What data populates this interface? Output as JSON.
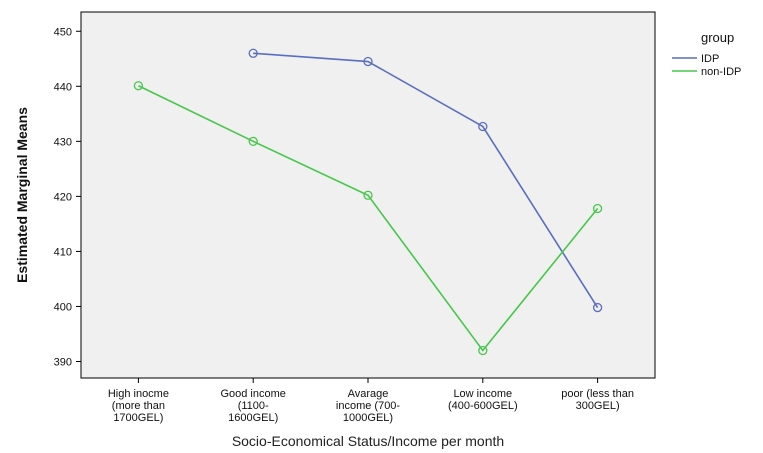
{
  "chart_data": {
    "type": "line",
    "categories": [
      [
        "High inocme",
        "(more than",
        "1700GEL)"
      ],
      [
        "Good income",
        "(1100-",
        "1600GEL)"
      ],
      [
        "Avarage",
        "income (700-",
        "1000GEL)"
      ],
      [
        "Low income",
        "(400-600GEL)"
      ],
      [
        "poor (less than",
        "300GEL)"
      ]
    ],
    "series": [
      {
        "name": "IDP",
        "color": "#5a6ebf",
        "values": [
          null,
          446,
          444.5,
          432.7,
          399.8
        ]
      },
      {
        "name": "non-IDP",
        "color": "#47c74a",
        "values": [
          440.1,
          430,
          420.2,
          392,
          417.8
        ]
      }
    ],
    "xlabel": "Socio-Economical Status/Income per month",
    "ylabel": "Estimated Marginal Means",
    "ylim": [
      387,
      453.5
    ],
    "yticks": [
      390,
      400,
      410,
      420,
      430,
      440,
      450
    ],
    "legend": {
      "title": "group",
      "placement": "top-right"
    },
    "background": "#f0f0f0",
    "grid": false
  }
}
